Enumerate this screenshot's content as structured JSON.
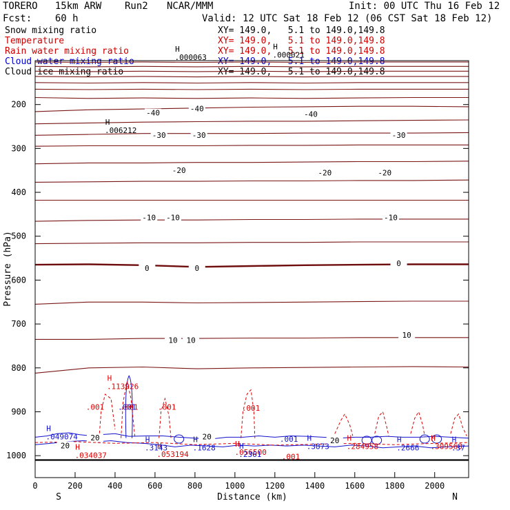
{
  "header": {
    "model": "TORERO   15km ARW    Run2",
    "org": "NCAR/MMM",
    "init": "Init: 00 UTC Thu 16 Feb 12",
    "fcst": "Fcst:    60 h",
    "valid": "Valid: 12 UTC Sat 18 Feb 12 (06 CST Sat 18 Feb 12)"
  },
  "legend": [
    {
      "name": "Snow mixing ratio",
      "xy": "XY= 149.0,   5.1 to 149.0,149.8",
      "color": "#000000"
    },
    {
      "name": "Temperature",
      "xy": "XY= 149.0,   5.1 to 149.0,149.8",
      "color": "#cc0000"
    },
    {
      "name": "Rain water mixing ratio",
      "xy": "XY= 149.0,   5.1 to 149.0,149.8",
      "color": "#cc0000"
    },
    {
      "name": "Cloud water mixing ratio",
      "xy": "XY= 149.0,   5.1 to 149.0,149.8",
      "color": "#0000cc"
    },
    {
      "name": "Cloud ice mixing ratio",
      "xy": "XY= 149.0,   5.1 to 149.0,149.8",
      "color": "#000000"
    }
  ],
  "colors": {
    "temperature": "#7a1515",
    "zero_isotherm": "#6e0b0b",
    "rain": "#dd0000",
    "cloud_water": "#1010cc",
    "axis": "#000000"
  },
  "chart_data": {
    "type": "line",
    "title": "",
    "xlabel": "Distance (km)",
    "ylabel": "Pressure (hPa)",
    "xlim": [
      0,
      2170
    ],
    "ylim": [
      1050,
      100
    ],
    "x_ticks": [
      0,
      200,
      400,
      600,
      800,
      1000,
      1200,
      1400,
      1600,
      1800,
      2000
    ],
    "y_ticks": [
      200,
      300,
      400,
      500,
      600,
      700,
      800,
      900,
      1000
    ],
    "x_end_labels": {
      "left": "S",
      "right": "N"
    },
    "isotherm_levels": [
      {
        "p": [
          103,
          104,
          103,
          104,
          103,
          104,
          103,
          103,
          103
        ],
        "label": ""
      },
      {
        "p": [
          113,
          114,
          113,
          114,
          113,
          114,
          113,
          113,
          113
        ],
        "label": ""
      },
      {
        "p": [
          124,
          125,
          124,
          125,
          124,
          125,
          124,
          124,
          124
        ],
        "label": ""
      },
      {
        "p": [
          136,
          137,
          136,
          137,
          136,
          137,
          136,
          136,
          136
        ],
        "label": ""
      },
      {
        "p": [
          150,
          151,
          150,
          151,
          150,
          151,
          150,
          150,
          150
        ],
        "label": ""
      },
      {
        "p": [
          165,
          166,
          165,
          166,
          165,
          166,
          165,
          165,
          165
        ],
        "label": ""
      },
      {
        "p": [
          184,
          186,
          185,
          186,
          185,
          186,
          185,
          184,
          184
        ],
        "label": ""
      },
      {
        "p": [
          216,
          212,
          210,
          208,
          206,
          205,
          204,
          204,
          205
        ],
        "label": ""
      },
      {
        "p": [
          244,
          242,
          240,
          239,
          238,
          238,
          237,
          236,
          235
        ],
        "label": "-40"
      },
      {
        "p": [
          270,
          268,
          266,
          266,
          266,
          265,
          265,
          265,
          264
        ],
        "label": ""
      },
      {
        "p": [
          295,
          294,
          294,
          294,
          293,
          293,
          292,
          292,
          292
        ],
        "label": "-30"
      },
      {
        "p": [
          335,
          333,
          333,
          332,
          332,
          331,
          330,
          330,
          329
        ],
        "label": ""
      },
      {
        "p": [
          377,
          376,
          375,
          375,
          374,
          374,
          373,
          373,
          372
        ],
        "label": "-20"
      },
      {
        "p": [
          418,
          418,
          418,
          418,
          418,
          418,
          418,
          418,
          418
        ],
        "label": ""
      },
      {
        "p": [
          466,
          464,
          463,
          463,
          462,
          462,
          461,
          461,
          461
        ],
        "label": "-10"
      },
      {
        "p": [
          517,
          516,
          515,
          515,
          514,
          514,
          513,
          513,
          513
        ],
        "label": ""
      },
      {
        "p": [
          565,
          564,
          566,
          570,
          568,
          566,
          565,
          564,
          564
        ],
        "label": "0",
        "bold": true
      },
      {
        "p": [
          655,
          650,
          650,
          652,
          651,
          650,
          649,
          648,
          648
        ],
        "label": ""
      },
      {
        "p": [
          735,
          735,
          733,
          733,
          732,
          732,
          731,
          731,
          731
        ],
        "label": "10"
      },
      {
        "p": [
          812,
          800,
          798,
          802,
          800,
          799,
          798,
          797,
          798
        ],
        "label": ""
      }
    ],
    "isotherm_x": [
      0,
      270,
      540,
      810,
      1080,
      1350,
      1620,
      1890,
      2170
    ],
    "point_labels": [
      {
        "x": 810,
        "p": 212,
        "text": "-40"
      },
      {
        "x": 1380,
        "p": 225,
        "text": "-40"
      },
      {
        "x": 590,
        "p": 222,
        "text": "-40"
      },
      {
        "x": 620,
        "p": 273,
        "text": "-30"
      },
      {
        "x": 820,
        "p": 273,
        "text": "-30"
      },
      {
        "x": 1820,
        "p": 273,
        "text": "-30"
      },
      {
        "x": 720,
        "p": 353,
        "text": "-20"
      },
      {
        "x": 1450,
        "p": 358,
        "text": "-20"
      },
      {
        "x": 1750,
        "p": 358,
        "text": "-20"
      },
      {
        "x": 570,
        "p": 460,
        "text": "-10"
      },
      {
        "x": 690,
        "p": 460,
        "text": "-10"
      },
      {
        "x": 1780,
        "p": 460,
        "text": "-10"
      },
      {
        "x": 560,
        "p": 576,
        "text": "0"
      },
      {
        "x": 810,
        "p": 576,
        "text": "0"
      },
      {
        "x": 1820,
        "p": 565,
        "text": "0"
      },
      {
        "x": 690,
        "p": 740,
        "text": "10"
      },
      {
        "x": 780,
        "p": 740,
        "text": "10"
      },
      {
        "x": 1860,
        "p": 728,
        "text": "10"
      },
      {
        "x": 860,
        "p": 960,
        "text": "20"
      },
      {
        "x": 150,
        "p": 980,
        "text": "20"
      },
      {
        "x": 300,
        "p": 962,
        "text": "20"
      },
      {
        "x": 1500,
        "p": 968,
        "text": "20"
      }
    ],
    "maxima": [
      {
        "x": 400,
        "p": 845,
        "text": ".113926",
        "color": "#dd0000"
      },
      {
        "x": 240,
        "p": 1002,
        "text": ".034037",
        "color": "#dd0000"
      },
      {
        "x": 650,
        "p": 1000,
        "text": ".053194",
        "color": "#dd0000"
      },
      {
        "x": 1040,
        "p": 995,
        "text": ".056500",
        "color": "#dd0000"
      },
      {
        "x": 1600,
        "p": 982,
        "text": ".284958",
        "color": "#dd0000"
      },
      {
        "x": 2020,
        "p": 982,
        "text": ".309568",
        "color": "#dd0000"
      },
      {
        "x": 95,
        "p": 960,
        "text": ".049074",
        "color": "#1010cc"
      },
      {
        "x": 590,
        "p": 985,
        "text": ".3143",
        "color": "#1010cc"
      },
      {
        "x": 830,
        "p": 985,
        "text": ".1628",
        "color": "#1010cc"
      },
      {
        "x": 1060,
        "p": 1000,
        "text": ".2361",
        "color": "#1010cc"
      },
      {
        "x": 1400,
        "p": 982,
        "text": ".3873",
        "color": "#1010cc"
      },
      {
        "x": 1850,
        "p": 985,
        "text": ".2666",
        "color": "#1010cc"
      },
      {
        "x": 2125,
        "p": 985,
        "text": ".37",
        "color": "#1010cc"
      },
      {
        "x": 740,
        "p": 95,
        "text": ".000063",
        "color": "#000000"
      },
      {
        "x": 1230,
        "p": 90,
        "text": ".000021",
        "color": "#000000"
      },
      {
        "x": 390,
        "p": 262,
        "text": ".006212",
        "color": "#000000"
      }
    ],
    "rain_labels": [
      {
        "x": 300,
        "p": 895,
        "text": ".001"
      },
      {
        "x": 470,
        "p": 895,
        "text": ".001"
      },
      {
        "x": 660,
        "p": 895,
        "text": ".001"
      },
      {
        "x": 1080,
        "p": 898,
        "text": ".001"
      },
      {
        "x": 1280,
        "p": 1008,
        "text": ".001"
      }
    ],
    "cloud_labels": [
      {
        "x": 460,
        "p": 895,
        "text": ".001"
      },
      {
        "x": 1270,
        "p": 968,
        "text": ".001"
      }
    ]
  }
}
